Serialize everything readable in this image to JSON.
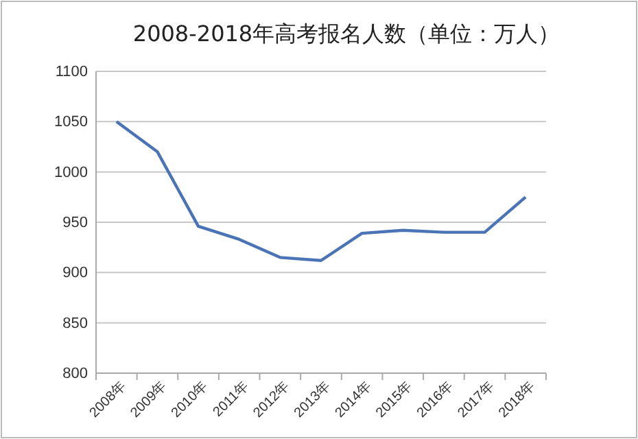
{
  "chart_data": {
    "type": "line",
    "title": "2008-2018年高考报名人数（单位：万人）",
    "categories": [
      "2008年",
      "2009年",
      "2010年",
      "2011年",
      "2012年",
      "2013年",
      "2014年",
      "2015年",
      "2016年",
      "2017年",
      "2018年"
    ],
    "series": [
      {
        "color": "#4a74b5",
        "values": [
          1050,
          1020,
          946,
          933,
          915,
          912,
          939,
          942,
          940,
          940,
          975
        ]
      }
    ],
    "ylim": [
      800,
      1100
    ],
    "yticks": [
      800,
      850,
      900,
      950,
      1000,
      1050,
      1100
    ],
    "grid": "y",
    "marker": "none",
    "line_style": "solid"
  }
}
